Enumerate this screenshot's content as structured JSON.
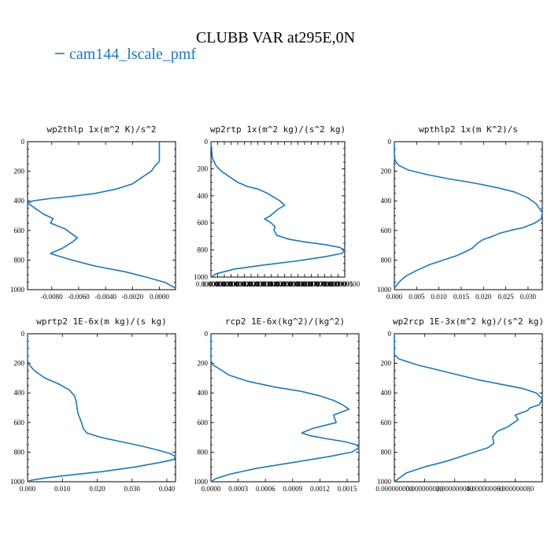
{
  "title": "CLUBB VAR at295E,0N",
  "colors": {
    "series": "#1f77b4",
    "axis": "#000000",
    "background": "#ffffff"
  },
  "legend": {
    "label": "cam144_lscale_pmf"
  },
  "chart_data": [
    {
      "type": "line",
      "title": "wp2thlp  1x(m^2 K)/s^2",
      "xlabel": "",
      "ylabel": "",
      "xlim": [
        -0.0098,
        0.0012
      ],
      "ylim": [
        1000,
        0
      ],
      "xticks": [
        -0.008,
        -0.006,
        -0.004,
        -0.002,
        0.0
      ],
      "xtick_labels": [
        "-0.0080",
        "-0.0060",
        "-0.0040",
        "-0.0020",
        "0.0000"
      ],
      "yticks": [
        0,
        200,
        400,
        600,
        800,
        1000
      ],
      "ytick_labels": [
        "0",
        "200",
        "400",
        "600",
        "800",
        "1000"
      ],
      "series": [
        {
          "name": "cam144_lscale_pmf",
          "x": [
            0.0,
            0.0,
            -0.0001,
            -0.0003,
            -0.0006,
            -0.0012,
            -0.002,
            -0.0032,
            -0.0048,
            -0.0066,
            -0.0082,
            -0.0094,
            -0.0098,
            -0.0094,
            -0.0086,
            -0.0079,
            -0.0081,
            -0.007,
            -0.0061,
            -0.0065,
            -0.0072,
            -0.0081,
            -0.0076,
            -0.0065,
            -0.0048,
            -0.0025,
            -0.001,
            0.0004,
            0.0012
          ],
          "y": [
            0,
            130,
            145,
            160,
            200,
            235,
            285,
            320,
            350,
            370,
            385,
            400,
            415,
            440,
            490,
            520,
            550,
            590,
            650,
            680,
            720,
            755,
            770,
            800,
            840,
            880,
            915,
            950,
            990
          ]
        }
      ]
    },
    {
      "type": "line",
      "title": "wp2rtp  1x(m^2 kg)/(s^2 kg)",
      "xlabel": "",
      "ylabel": "",
      "xlim": [
        0.0,
        1e-05
      ],
      "ylim": [
        1000,
        0
      ],
      "xticks": [
        0.0,
        5e-07,
        1e-06,
        1.5e-06,
        2e-06,
        2.5e-06,
        3e-06,
        3.5e-06,
        4e-06,
        4.5e-06,
        5e-06,
        5.5e-06,
        6e-06,
        6.5e-06,
        7e-06,
        7.5e-06,
        8e-06,
        8.5e-06,
        9e-06,
        9.5e-06,
        1e-05
      ],
      "xtick_labels": [
        "0.0000000",
        "0.0000005",
        "0.0000010",
        "0.0000015",
        "0.0000020",
        "0.0000025",
        "0.0000030",
        "0.0000035",
        "0.0000040",
        "0.0000045",
        "0.0000050",
        "0.0000055",
        "0.0000060",
        "0.0000065",
        "0.0000070",
        "0.0000075",
        "0.0000080",
        "0.0000085",
        "0.0000090",
        "0.0000095",
        "0.0000100"
      ],
      "yticks": [
        0,
        200,
        400,
        600,
        800,
        1000
      ],
      "ytick_labels": [
        "0",
        "200",
        "400",
        "600",
        "800",
        "1000"
      ],
      "series": [
        {
          "name": "cam144_lscale_pmf",
          "x": [
            0.0,
            1e-07,
            4e-07,
            8e-07,
            1.4e-06,
            2e-06,
            2.7e-06,
            3.5e-06,
            4.2e-06,
            4.7e-06,
            5.2e-06,
            5.5e-06,
            5e-06,
            4.4e-06,
            4e-06,
            4.5e-06,
            4.8e-06,
            4.7e-06,
            4.9e-06,
            5.8e-06,
            7e-06,
            8.5e-06,
            9.6e-06,
            1e-05,
            9.8e-06,
            8.5e-06,
            6.5e-06,
            4e-06,
            1.8e-06,
            4e-07,
            0.0
          ],
          "y": [
            0,
            120,
            180,
            220,
            260,
            300,
            330,
            350,
            380,
            410,
            440,
            470,
            500,
            550,
            570,
            600,
            630,
            650,
            690,
            720,
            740,
            760,
            780,
            800,
            825,
            850,
            880,
            910,
            940,
            975,
            1000
          ]
        }
      ]
    },
    {
      "type": "line",
      "title": "wpthlp2  1x(m K^2)/s",
      "xlabel": "",
      "ylabel": "",
      "xlim": [
        0.0,
        0.0332
      ],
      "ylim": [
        1000,
        0
      ],
      "xticks": [
        0.0,
        0.005,
        0.01,
        0.015,
        0.02,
        0.025,
        0.03
      ],
      "xtick_labels": [
        "0.000",
        "0.005",
        "0.010",
        "0.015",
        "0.020",
        "0.025",
        "0.030"
      ],
      "yticks": [
        0,
        200,
        400,
        600,
        800,
        1000
      ],
      "ytick_labels": [
        "0",
        "200",
        "400",
        "600",
        "800",
        "1000"
      ],
      "series": [
        {
          "name": "cam144_lscale_pmf",
          "x": [
            0.0,
            0.0,
            0.0002,
            0.001,
            0.003,
            0.007,
            0.012,
            0.018,
            0.023,
            0.027,
            0.03,
            0.0318,
            0.0332,
            0.033,
            0.0315,
            0.029,
            0.026,
            0.0235,
            0.022,
            0.02,
            0.0185,
            0.0175,
            0.0162,
            0.014,
            0.011,
            0.008,
            0.005,
            0.0025,
            0.001,
            0.0
          ],
          "y": [
            0,
            100,
            130,
            160,
            190,
            220,
            250,
            280,
            310,
            340,
            380,
            420,
            480,
            520,
            550,
            580,
            600,
            620,
            640,
            660,
            690,
            720,
            740,
            770,
            800,
            830,
            870,
            910,
            950,
            990
          ]
        }
      ]
    },
    {
      "type": "line",
      "title": "wprtp2  1E-6x(m kg)/(s kg)",
      "xlabel": "",
      "ylabel": "",
      "xlim": [
        0.0,
        0.0425
      ],
      "ylim": [
        1000,
        0
      ],
      "xticks": [
        0.0,
        0.01,
        0.02,
        0.03,
        0.04
      ],
      "xtick_labels": [
        "0.000",
        "0.010",
        "0.020",
        "0.030",
        "0.040"
      ],
      "yticks": [
        0,
        200,
        400,
        600,
        800,
        1000
      ],
      "ytick_labels": [
        "0",
        "200",
        "400",
        "600",
        "800",
        "1000"
      ],
      "series": [
        {
          "name": "cam144_lscale_pmf",
          "x": [
            0.0,
            0.0,
            0.0005,
            0.002,
            0.005,
            0.009,
            0.012,
            0.0135,
            0.014,
            0.0142,
            0.0145,
            0.015,
            0.0155,
            0.016,
            0.017,
            0.021,
            0.027,
            0.033,
            0.038,
            0.041,
            0.0425,
            0.042,
            0.038,
            0.031,
            0.022,
            0.012,
            0.005,
            0.001,
            0.0
          ],
          "y": [
            0,
            180,
            210,
            250,
            300,
            340,
            380,
            420,
            460,
            500,
            540,
            570,
            600,
            640,
            670,
            700,
            730,
            760,
            790,
            810,
            830,
            850,
            870,
            900,
            930,
            955,
            975,
            990,
            1000
          ]
        }
      ]
    },
    {
      "type": "line",
      "title": "rcp2  1E-6x(kg^2)/(kg^2)",
      "xlabel": "",
      "ylabel": "",
      "xlim": [
        0.0,
        0.00163
      ],
      "ylim": [
        1000,
        0
      ],
      "xticks": [
        0.0,
        0.0003,
        0.0006,
        0.0009,
        0.0012,
        0.0015
      ],
      "xtick_labels": [
        "0.0000",
        "0.0003",
        "0.0006",
        "0.0009",
        "0.0012",
        "0.0015"
      ],
      "yticks": [
        0,
        200,
        400,
        600,
        800,
        1000
      ],
      "ytick_labels": [
        "0",
        "200",
        "400",
        "600",
        "800",
        "1000"
      ],
      "series": [
        {
          "name": "cam144_lscale_pmf",
          "x": [
            0.0,
            0.0,
            2e-05,
            0.0001,
            0.0002,
            0.0004,
            0.0007,
            0.001,
            0.0012,
            0.00135,
            0.00145,
            0.00152,
            0.00135,
            0.00138,
            0.00112,
            0.001,
            0.0011,
            0.00128,
            0.00148,
            0.0016,
            0.00163,
            0.00155,
            0.0013,
            0.0009,
            0.0005,
            0.0002,
            5e-05,
            0.0
          ],
          "y": [
            0,
            180,
            210,
            240,
            280,
            320,
            360,
            390,
            420,
            450,
            480,
            510,
            550,
            600,
            640,
            670,
            690,
            710,
            730,
            750,
            770,
            800,
            830,
            870,
            910,
            950,
            980,
            1000
          ]
        }
      ]
    },
    {
      "type": "line",
      "title": "wp2rcp  1E-3x(m^2 kg)/(s^2 kg)",
      "xlabel": "",
      "ylabel": "",
      "xlim": [
        0.0,
        9.8e-08
      ],
      "ylim": [
        1000,
        0
      ],
      "xticks": [
        0.0,
        2e-08,
        4e-08,
        6e-08,
        8e-08
      ],
      "xtick_labels": [
        "0.000000000",
        "0.000000020",
        "0.000000040",
        "0.000000060",
        "0.000000080"
      ],
      "yticks": [
        0,
        200,
        400,
        600,
        800,
        1000
      ],
      "ytick_labels": [
        "0",
        "200",
        "400",
        "600",
        "800",
        "1000"
      ],
      "series": [
        {
          "name": "cam144_lscale_pmf",
          "x": [
            0.0,
            0.0,
            3e-09,
            1.5e-08,
            3.5e-08,
            5.5e-08,
            7e-08,
            8.5e-08,
            9.4e-08,
            9.8e-08,
            9.6e-08,
            9e-08,
            8.8e-08,
            8e-08,
            8.2e-08,
            7.5e-08,
            6.8e-08,
            6.5e-08,
            6.6e-08,
            6.2e-08,
            5e-08,
            3.5e-08,
            2e-08,
            8e-09,
            0.0
          ],
          "y": [
            0,
            140,
            170,
            210,
            260,
            310,
            340,
            370,
            400,
            440,
            480,
            500,
            520,
            550,
            580,
            630,
            660,
            700,
            740,
            770,
            810,
            860,
            900,
            940,
            1000
          ]
        }
      ]
    }
  ]
}
